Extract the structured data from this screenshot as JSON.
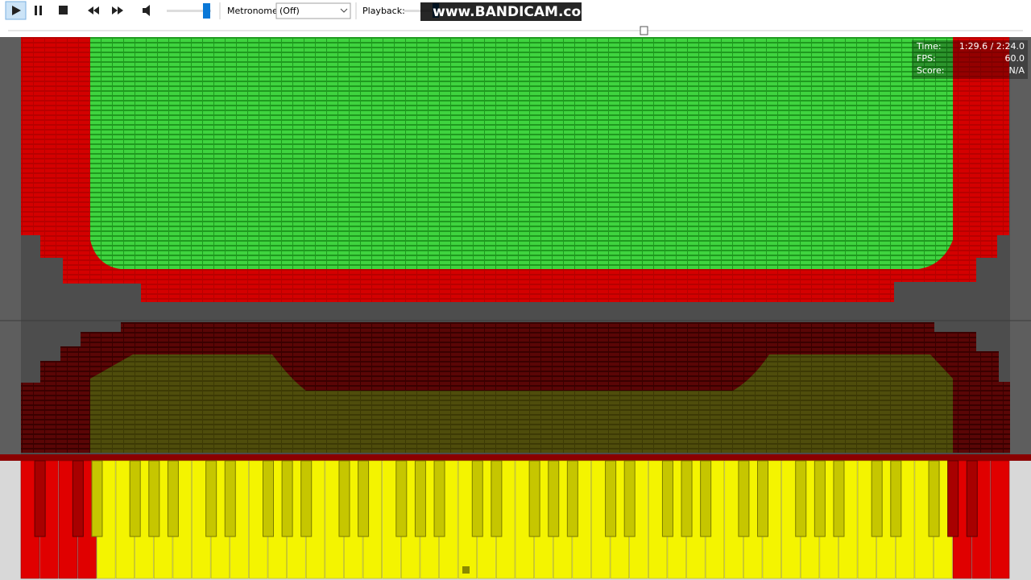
{
  "toolbar": {
    "metronome_label": "Metronome:",
    "metronome_value": "(Off)",
    "playback_label": "Playback:",
    "watermark": "www.BANDICAM.com"
  },
  "stats": {
    "time_label": "Time:",
    "time_value": "1:29.6 / 2:24.0",
    "fps_label": "FPS:",
    "fps_value": "60.0",
    "score_label": "Score:",
    "score_value": "N/A"
  }
}
